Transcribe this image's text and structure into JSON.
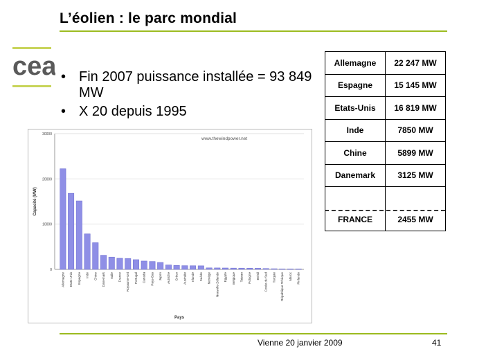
{
  "slide": {
    "title": "L’éolien : le parc mondial",
    "bullets": [
      "Fin 2007 puissance installée = 93 849 MW",
      "X 20 depuis 1995"
    ],
    "footer": "Vienne  20 janvier 2009",
    "page_number": "41",
    "accent_color": "#9bbb1f"
  },
  "logo": {
    "text": "cea"
  },
  "capacity_table": {
    "rows": [
      {
        "country": "Allemagne",
        "value": "22 247 MW"
      },
      {
        "country": "Espagne",
        "value": "15 145 MW"
      },
      {
        "country": "Etats-Unis",
        "value": "16 819 MW"
      },
      {
        "country": "Inde",
        "value": "7850 MW"
      },
      {
        "country": "Chine",
        "value": "5899 MW"
      },
      {
        "country": "Danemark",
        "value": "3125 MW"
      },
      {
        "country": "",
        "value": ""
      },
      {
        "country": "FRANCE",
        "value": "2455 MW"
      }
    ]
  },
  "chart_data": {
    "type": "bar",
    "source": "www.thewindpower.net",
    "xlabel": "Pays",
    "ylabel": "Capacité (MW)",
    "ylim": [
      0,
      30000
    ],
    "yticks": [
      0,
      10000,
      20000,
      30000
    ],
    "grid": true,
    "bar_color": "#8f8fe6",
    "categories": [
      "Allemagne",
      "Etats-Unis",
      "Espagne",
      "Inde",
      "Chine",
      "Danemark",
      "Italie",
      "France",
      "Royaume-Uni",
      "Portugal",
      "Canada",
      "Pays-Bas",
      "Japon",
      "Autriche",
      "Grèce",
      "Australie",
      "Irlande",
      "Suède",
      "Norvège",
      "Nouvelle-Zélande",
      "Egypte",
      "Belgique",
      "Taiwan",
      "Pologne",
      "Brésil",
      "Corée du Sud",
      "Turquie",
      "République Tchèque",
      "Maroc",
      "Finlande"
    ],
    "values": [
      22247,
      16819,
      15145,
      7850,
      5899,
      3125,
      2726,
      2455,
      2389,
      2150,
      1846,
      1746,
      1538,
      982,
      871,
      824,
      805,
      788,
      333,
      322,
      310,
      287,
      280,
      276,
      247,
      192,
      147,
      116,
      114,
      110
    ]
  }
}
